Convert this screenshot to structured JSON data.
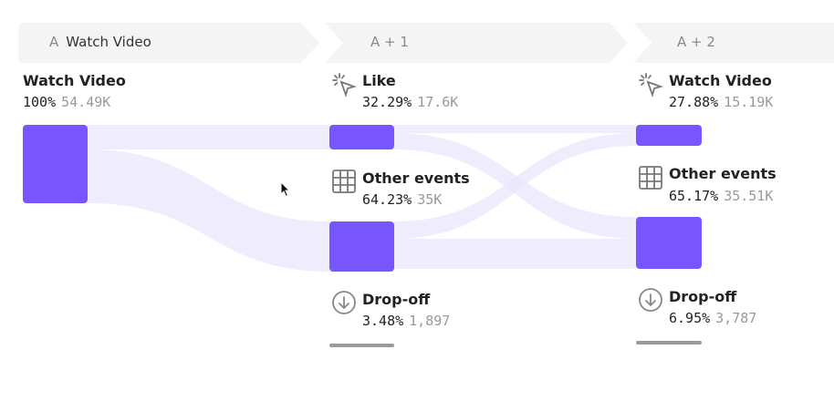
{
  "steps": [
    {
      "prefix": "A",
      "title": "Watch Video"
    },
    {
      "prefix": "A + 1",
      "title": ""
    },
    {
      "prefix": "A + 2",
      "title": ""
    }
  ],
  "columns": [
    {
      "nodes": [
        {
          "label": "Watch Video",
          "percent": "100%",
          "count": "54.49K",
          "icon": "none"
        }
      ]
    },
    {
      "nodes": [
        {
          "label": "Like",
          "percent": "32.29%",
          "count": "17.6K",
          "icon": "click-cursor-icon"
        },
        {
          "label": "Other events",
          "percent": "64.23%",
          "count": "35K",
          "icon": "grid-icon"
        },
        {
          "label": "Drop-off",
          "percent": "3.48%",
          "count": "1,897",
          "icon": "arrow-down-circle-icon"
        }
      ]
    },
    {
      "nodes": [
        {
          "label": "Watch Video",
          "percent": "27.88%",
          "count": "15.19K",
          "icon": "click-cursor-icon"
        },
        {
          "label": "Other events",
          "percent": "65.17%",
          "count": "35.51K",
          "icon": "grid-icon"
        },
        {
          "label": "Drop-off",
          "percent": "6.95%",
          "count": "3,787",
          "icon": "arrow-down-circle-icon"
        }
      ]
    }
  ],
  "colors": {
    "node": "#7856ff",
    "flow": "#ece9fc",
    "header": "#f4f4f5",
    "dropoff_bar": "#9a9a9a"
  }
}
